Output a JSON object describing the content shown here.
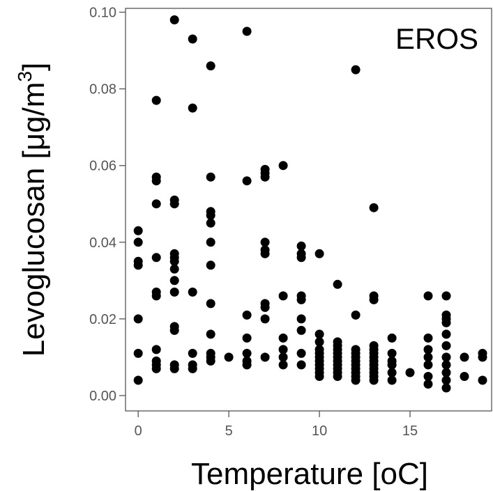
{
  "chart_data": {
    "type": "scatter",
    "title": "",
    "annotation": "EROS",
    "xlabel": "Temperature [oC]",
    "ylabel_prefix": "Levoglucosan [",
    "ylabel_unit": "μg/m",
    "ylabel_sup": "3",
    "ylabel_suffix": "]",
    "xlim": [
      -0.7,
      19.5
    ],
    "ylim": [
      -0.004,
      0.101
    ],
    "x_ticks": [
      0,
      5,
      10,
      15
    ],
    "x_tick_labels": [
      "0",
      "5",
      "10",
      "15"
    ],
    "y_ticks": [
      0.0,
      0.02,
      0.04,
      0.06,
      0.08,
      0.1
    ],
    "y_tick_labels": [
      "0.00",
      "0.02",
      "0.04",
      "0.06",
      "0.08",
      "0.10"
    ],
    "grid": false,
    "marker_color": "#000000",
    "axis_color": "#555555",
    "points": [
      [
        0,
        0.004
      ],
      [
        0,
        0.011
      ],
      [
        0,
        0.02
      ],
      [
        0,
        0.034
      ],
      [
        0,
        0.035
      ],
      [
        0,
        0.04
      ],
      [
        0,
        0.043
      ],
      [
        1,
        0.007
      ],
      [
        1,
        0.008
      ],
      [
        1,
        0.009
      ],
      [
        1,
        0.012
      ],
      [
        1,
        0.026
      ],
      [
        1,
        0.027
      ],
      [
        1,
        0.036
      ],
      [
        1,
        0.05
      ],
      [
        1,
        0.056
      ],
      [
        1,
        0.057
      ],
      [
        1,
        0.077
      ],
      [
        2,
        0.007
      ],
      [
        2,
        0.008
      ],
      [
        2,
        0.017
      ],
      [
        2,
        0.018
      ],
      [
        2,
        0.027
      ],
      [
        2,
        0.03
      ],
      [
        2,
        0.033
      ],
      [
        2,
        0.035
      ],
      [
        2,
        0.036
      ],
      [
        2,
        0.037
      ],
      [
        2,
        0.05
      ],
      [
        2,
        0.051
      ],
      [
        2,
        0.098
      ],
      [
        3,
        0.007
      ],
      [
        3,
        0.008
      ],
      [
        3,
        0.011
      ],
      [
        3,
        0.027
      ],
      [
        3,
        0.075
      ],
      [
        3,
        0.093
      ],
      [
        4,
        0.009
      ],
      [
        4,
        0.01
      ],
      [
        4,
        0.011
      ],
      [
        4,
        0.016
      ],
      [
        4,
        0.024
      ],
      [
        4,
        0.034
      ],
      [
        4,
        0.04
      ],
      [
        4,
        0.045
      ],
      [
        4,
        0.047
      ],
      [
        4,
        0.048
      ],
      [
        4,
        0.057
      ],
      [
        4,
        0.086
      ],
      [
        5,
        0.01
      ],
      [
        6,
        0.008
      ],
      [
        6,
        0.009
      ],
      [
        6,
        0.011
      ],
      [
        6,
        0.015
      ],
      [
        6,
        0.021
      ],
      [
        6,
        0.056
      ],
      [
        6,
        0.095
      ],
      [
        7,
        0.01
      ],
      [
        7,
        0.02
      ],
      [
        7,
        0.023
      ],
      [
        7,
        0.024
      ],
      [
        7,
        0.037
      ],
      [
        7,
        0.038
      ],
      [
        7,
        0.04
      ],
      [
        7,
        0.057
      ],
      [
        7,
        0.058
      ],
      [
        7,
        0.059
      ],
      [
        8,
        0.008
      ],
      [
        8,
        0.01
      ],
      [
        8,
        0.012
      ],
      [
        8,
        0.015
      ],
      [
        8,
        0.026
      ],
      [
        8,
        0.06
      ],
      [
        9,
        0.008
      ],
      [
        9,
        0.011
      ],
      [
        9,
        0.017
      ],
      [
        9,
        0.02
      ],
      [
        9,
        0.025
      ],
      [
        9,
        0.026
      ],
      [
        9,
        0.036
      ],
      [
        9,
        0.037
      ],
      [
        9,
        0.039
      ],
      [
        10,
        0.005
      ],
      [
        10,
        0.006
      ],
      [
        10,
        0.007
      ],
      [
        10,
        0.008
      ],
      [
        10,
        0.009
      ],
      [
        10,
        0.01
      ],
      [
        10,
        0.011
      ],
      [
        10,
        0.012
      ],
      [
        10,
        0.014
      ],
      [
        10,
        0.016
      ],
      [
        10,
        0.037
      ],
      [
        11,
        0.005
      ],
      [
        11,
        0.006
      ],
      [
        11,
        0.007
      ],
      [
        11,
        0.008
      ],
      [
        11,
        0.009
      ],
      [
        11,
        0.01
      ],
      [
        11,
        0.011
      ],
      [
        11,
        0.012
      ],
      [
        11,
        0.013
      ],
      [
        11,
        0.014
      ],
      [
        11,
        0.029
      ],
      [
        12,
        0.004
      ],
      [
        12,
        0.005
      ],
      [
        12,
        0.006
      ],
      [
        12,
        0.007
      ],
      [
        12,
        0.008
      ],
      [
        12,
        0.009
      ],
      [
        12,
        0.01
      ],
      [
        12,
        0.011
      ],
      [
        12,
        0.012
      ],
      [
        12,
        0.021
      ],
      [
        12,
        0.085
      ],
      [
        13,
        0.004
      ],
      [
        13,
        0.005
      ],
      [
        13,
        0.006
      ],
      [
        13,
        0.007
      ],
      [
        13,
        0.008
      ],
      [
        13,
        0.009
      ],
      [
        13,
        0.01
      ],
      [
        13,
        0.011
      ],
      [
        13,
        0.012
      ],
      [
        13,
        0.013
      ],
      [
        13,
        0.025
      ],
      [
        13,
        0.026
      ],
      [
        13,
        0.049
      ],
      [
        14,
        0.004
      ],
      [
        14,
        0.006
      ],
      [
        14,
        0.008
      ],
      [
        14,
        0.009
      ],
      [
        14,
        0.011
      ],
      [
        14,
        0.015
      ],
      [
        15,
        0.006
      ],
      [
        16,
        0.003
      ],
      [
        16,
        0.005
      ],
      [
        16,
        0.008
      ],
      [
        16,
        0.01
      ],
      [
        16,
        0.012
      ],
      [
        16,
        0.015
      ],
      [
        16,
        0.026
      ],
      [
        17,
        0.002
      ],
      [
        17,
        0.004
      ],
      [
        17,
        0.006
      ],
      [
        17,
        0.008
      ],
      [
        17,
        0.01
      ],
      [
        17,
        0.013
      ],
      [
        17,
        0.016
      ],
      [
        17,
        0.019
      ],
      [
        17,
        0.02
      ],
      [
        17,
        0.021
      ],
      [
        17,
        0.026
      ],
      [
        18,
        0.005
      ],
      [
        18,
        0.01
      ],
      [
        19,
        0.004
      ],
      [
        19,
        0.01
      ],
      [
        19,
        0.011
      ]
    ]
  }
}
